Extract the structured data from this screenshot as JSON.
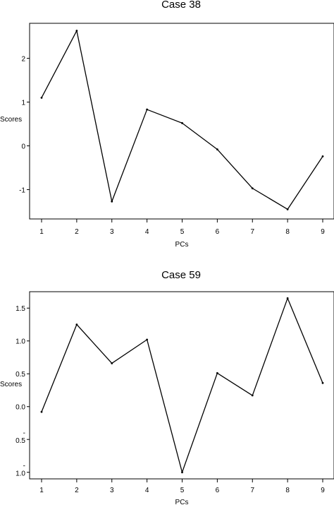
{
  "chart_data": [
    {
      "type": "line",
      "title": "Case 38",
      "xlabel": "PCs",
      "ylabel": "Scores",
      "x": [
        1,
        2,
        3,
        4,
        5,
        6,
        7,
        8,
        9
      ],
      "xticks": [
        "1",
        "2",
        "3",
        "4",
        "5",
        "6",
        "7",
        "8",
        "9"
      ],
      "yticks": [
        {
          "value": 2,
          "label": "2"
        },
        {
          "value": 1,
          "label": "1"
        },
        {
          "value": 0,
          "label": "0"
        },
        {
          "value": -1,
          "label": "-1"
        }
      ],
      "series": [
        {
          "values": [
            1.1,
            2.63,
            -1.27,
            0.83,
            0.52,
            -0.08,
            -0.97,
            -1.45,
            -0.24
          ]
        }
      ],
      "xlim": [
        0.7,
        9.3
      ],
      "ylim": [
        -1.67,
        2.8
      ],
      "grid": false,
      "color": "#000000"
    },
    {
      "type": "line",
      "title": "Case 59",
      "xlabel": "PCs",
      "ylabel": "Scores",
      "x": [
        1,
        2,
        3,
        4,
        5,
        6,
        7,
        8,
        9
      ],
      "xticks": [
        "1",
        "2",
        "3",
        "4",
        "5",
        "6",
        "7",
        "8",
        "9"
      ],
      "yticks": [
        {
          "value": 1.5,
          "label": "1.5"
        },
        {
          "value": 1.0,
          "label": "1.0"
        },
        {
          "value": 0.5,
          "label": "0.5"
        },
        {
          "value": 0.0,
          "label": "0.0"
        },
        {
          "value": -0.5,
          "label": "-\n0.5"
        },
        {
          "value": -1.0,
          "label": "-\n1.0"
        }
      ],
      "series": [
        {
          "values": [
            -0.08,
            1.25,
            0.66,
            1.02,
            -1.0,
            0.51,
            0.17,
            1.65,
            0.36
          ]
        }
      ],
      "xlim": [
        0.7,
        9.3
      ],
      "ylim": [
        -1.1,
        1.75
      ],
      "grid": false,
      "color": "#000000"
    }
  ]
}
